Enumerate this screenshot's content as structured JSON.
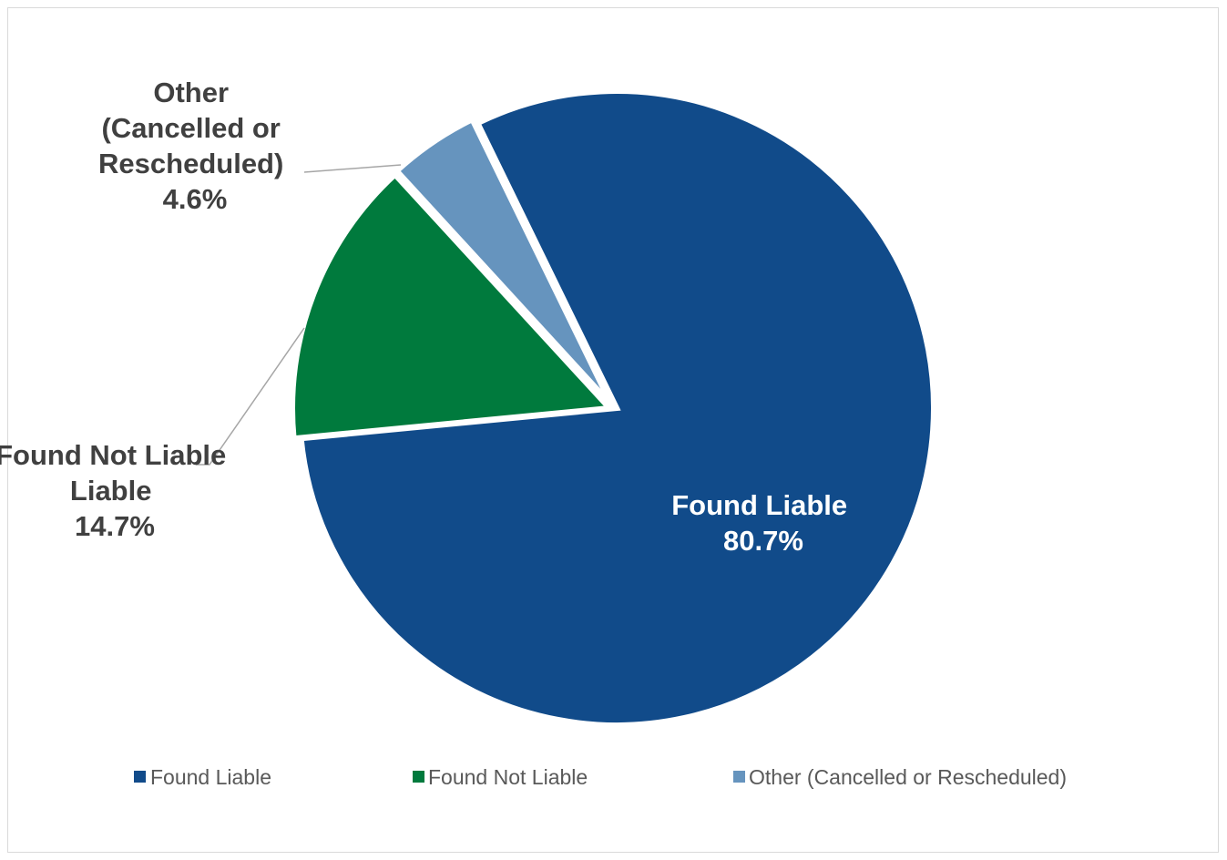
{
  "chart_data": {
    "type": "pie",
    "title": "",
    "slices": [
      {
        "name": "Found Liable",
        "value": 80.7,
        "label": "80.7%",
        "color": "#114B8A"
      },
      {
        "name": "Found Not Liable",
        "value": 14.7,
        "label": "14.7%",
        "color": "#007A3D"
      },
      {
        "name": "Other (Cancelled or Rescheduled)",
        "value": 4.6,
        "label": "4.6%",
        "color": "#6694BE"
      }
    ],
    "data_labels": {
      "found_liable": [
        "Found Liable",
        "80.7%"
      ],
      "found_not_liable": [
        "Found Not Liable",
        "Liable",
        "14.7%"
      ],
      "other": [
        "Other",
        "(Cancelled or",
        "Rescheduled)",
        "4.6%"
      ]
    },
    "legend_position": "bottom"
  }
}
